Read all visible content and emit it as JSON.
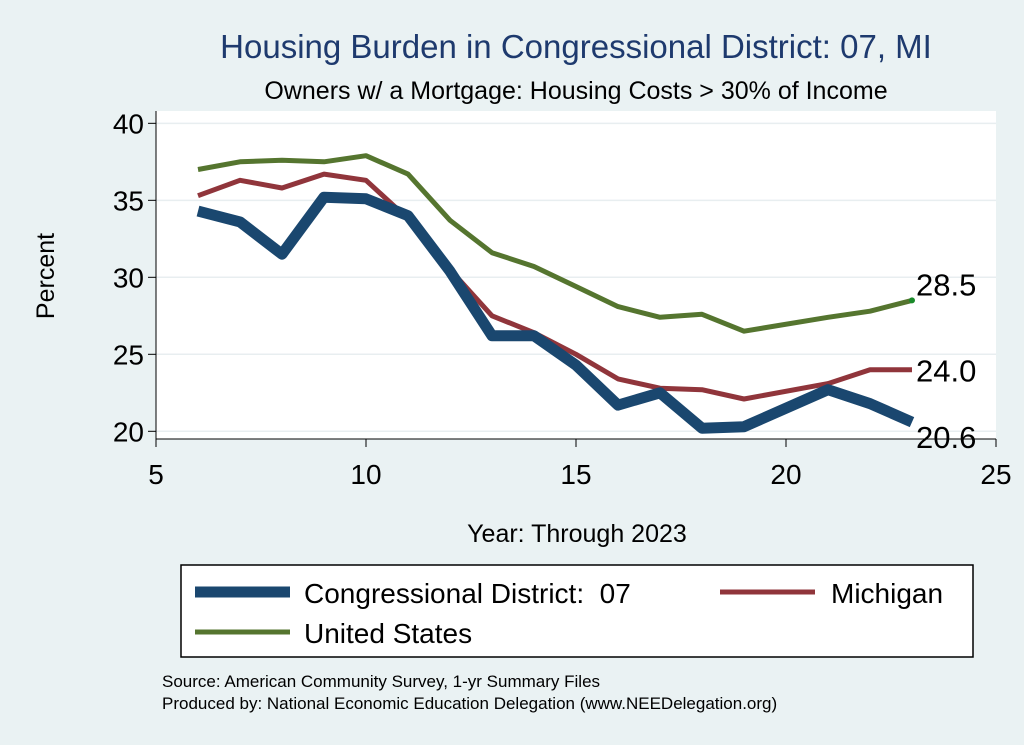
{
  "chart_data": {
    "type": "line",
    "title": "Housing Burden in Congressional District:  07, MI",
    "subtitle": "Owners w/ a Mortgage: Housing Costs > 30% of Income",
    "xlabel": "Year: Through 2023",
    "ylabel": "Percent",
    "xlim": [
      5,
      25
    ],
    "ylim": [
      19.5,
      40.8
    ],
    "xticks": [
      5,
      10,
      15,
      20,
      25
    ],
    "yticks": [
      20,
      25,
      30,
      35,
      40
    ],
    "grid": true,
    "legend_position": "bottom",
    "x": [
      6,
      7,
      8,
      9,
      10,
      11,
      12,
      13,
      14,
      15,
      16,
      17,
      18,
      19,
      21,
      22,
      23
    ],
    "series": [
      {
        "name": "Congressional District:  07",
        "color": "#1a476f",
        "values": [
          34.3,
          33.6,
          31.5,
          35.2,
          35.1,
          34.0,
          30.4,
          26.2,
          26.2,
          24.3,
          21.7,
          22.5,
          20.2,
          20.3,
          22.7,
          21.8,
          20.6
        ],
        "end_label": "20.6"
      },
      {
        "name": "Michigan",
        "color": "#90353b",
        "values": [
          35.3,
          36.3,
          35.8,
          36.7,
          36.3,
          33.8,
          30.5,
          27.5,
          26.4,
          25.0,
          23.4,
          22.8,
          22.7,
          22.1,
          23.1,
          24.0,
          24.0
        ],
        "end_label": "24.0"
      },
      {
        "name": "United States",
        "color": "#55752f",
        "values": [
          37.0,
          37.5,
          37.6,
          37.5,
          37.9,
          36.7,
          33.7,
          31.6,
          30.7,
          29.4,
          28.1,
          27.4,
          27.6,
          26.5,
          27.4,
          27.8,
          28.5
        ],
        "end_label": "28.5"
      }
    ],
    "source_lines": [
      "Source: American Community Survey, 1-yr Summary Files",
      "Produced by: National Economic Education Delegation (www.NEEDelegation.org)"
    ]
  }
}
